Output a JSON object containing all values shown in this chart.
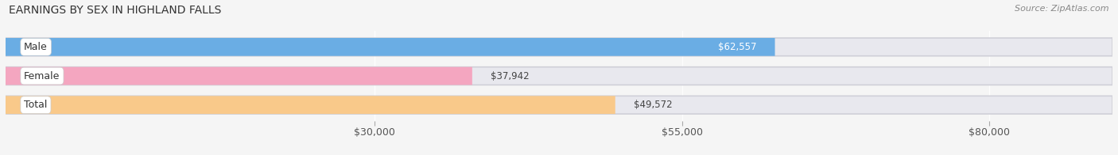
{
  "title": "EARNINGS BY SEX IN HIGHLAND FALLS",
  "source": "Source: ZipAtlas.com",
  "categories": [
    "Male",
    "Female",
    "Total"
  ],
  "values": [
    62557,
    37942,
    49572
  ],
  "bar_colors": [
    "#6aade4",
    "#f4a6c0",
    "#f9c98a"
  ],
  "bar_bg_color": "#e8e8ee",
  "label_colors": [
    "white",
    "#444444",
    "#444444"
  ],
  "label_inside": [
    true,
    false,
    false
  ],
  "x_min": 0,
  "x_max": 90000,
  "x_ticks": [
    30000,
    55000,
    80000
  ],
  "x_tick_labels": [
    "$30,000",
    "$55,000",
    "$80,000"
  ],
  "bar_height": 0.62,
  "background_color": "#f5f5f5",
  "title_fontsize": 10,
  "label_fontsize": 8.5,
  "category_fontsize": 9,
  "tick_fontsize": 9,
  "source_fontsize": 8
}
